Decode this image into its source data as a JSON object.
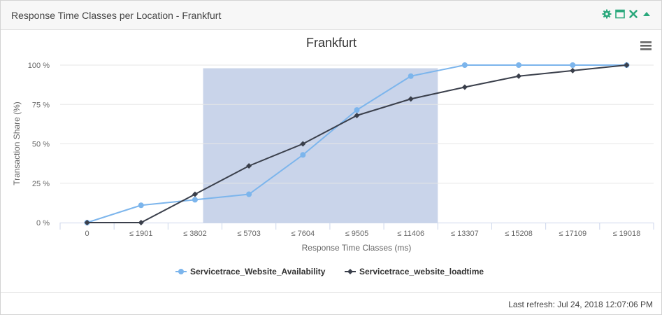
{
  "panel": {
    "title": "Response Time Classes per Location - Frankfurt",
    "tools": [
      "gear-icon",
      "maximize-icon",
      "close-icon",
      "collapse-icon"
    ],
    "accent": "#2aa87c"
  },
  "footer": {
    "last_refresh": "Last refresh: Jul 24, 2018 12:07:06 PM"
  },
  "chart_data": {
    "type": "line",
    "title": "Frankfurt",
    "xlabel": "Response Time Classes (ms)",
    "ylabel": "Transaction Share (%)",
    "categories": [
      "0",
      "≤ 1901",
      "≤ 3802",
      "≤ 5703",
      "≤ 7604",
      "≤ 9505",
      "≤ 11406",
      "≤ 13307",
      "≤ 15208",
      "≤ 17109",
      "≤ 19018"
    ],
    "yticks": [
      "0 %",
      "25 %",
      "50 %",
      "75 %",
      "100 %"
    ],
    "ylim": [
      0,
      100
    ],
    "grid": true,
    "legend": "bottom",
    "highlight_band": {
      "from": 2.15,
      "to": 6.5,
      "color": "#c9d4ea"
    },
    "series": [
      {
        "name": "Servicetrace_Website_Availability",
        "color": "#7cb5ec",
        "marker": "circle",
        "values": [
          0,
          11,
          14.5,
          18,
          43,
          71.5,
          93,
          100,
          100,
          100,
          100
        ]
      },
      {
        "name": "Servicetrace_website_loadtime",
        "color": "#3a3f4b",
        "marker": "diamond",
        "values": [
          0,
          0,
          18,
          36,
          50,
          68,
          78.5,
          86,
          93,
          96.5,
          100
        ]
      }
    ]
  }
}
